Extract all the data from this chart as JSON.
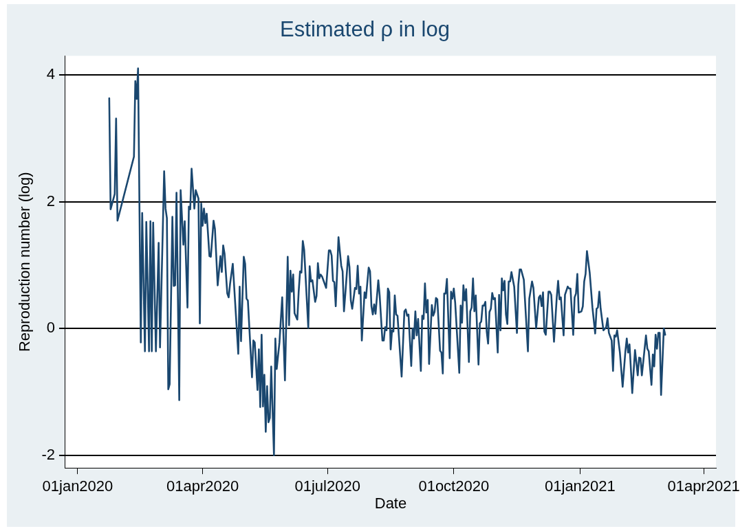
{
  "chart_data": {
    "type": "line",
    "title": "Estimated ρ in log",
    "xlabel": "Date",
    "ylabel": "Reproduction number (log)",
    "xlim": [
      "2019-12-23",
      "2021-04-10"
    ],
    "xticks": [
      {
        "value": "2020-01-01",
        "label": "01jan2020"
      },
      {
        "value": "2020-04-01",
        "label": "01apr2020"
      },
      {
        "value": "2020-07-01",
        "label": "01jul2020"
      },
      {
        "value": "2020-10-01",
        "label": "01oct2020"
      },
      {
        "value": "2021-01-01",
        "label": "01jan2021"
      },
      {
        "value": "2021-04-01",
        "label": "01apr2021"
      }
    ],
    "ylim": [
      -2.2,
      4.3
    ],
    "yticks": [
      -2,
      0,
      2,
      4
    ],
    "grid": "y",
    "legend": false,
    "marker": "none",
    "line_style": "solid",
    "series": [
      {
        "color": "#1a476f",
        "x": [
          "2020-01-24",
          "2020-01-25",
          "2020-01-28",
          "2020-01-29",
          "2020-01-30",
          "2020-02-11",
          "2020-02-12",
          "2020-02-13",
          "2020-02-14",
          "2020-02-16",
          "2020-02-17",
          "2020-02-19",
          "2020-02-20",
          "2020-02-22",
          "2020-02-23",
          "2020-02-24",
          "2020-02-25",
          "2020-02-27",
          "2020-02-29",
          "2020-03-01",
          "2020-03-04",
          "2020-03-05",
          "2020-03-06",
          "2020-03-07",
          "2020-03-08",
          "2020-03-10",
          "2020-03-11",
          "2020-03-12",
          "2020-03-13",
          "2020-03-15",
          "2020-03-16",
          "2020-03-18",
          "2020-03-19",
          "2020-03-21",
          "2020-03-22",
          "2020-03-23",
          "2020-03-24",
          "2020-03-26",
          "2020-03-27",
          "2020-03-29",
          "2020-03-30",
          "2020-03-31",
          "2020-04-01",
          "2020-04-02",
          "2020-04-03",
          "2020-04-04",
          "2020-04-06",
          "2020-04-07",
          "2020-04-09",
          "2020-04-10",
          "2020-04-12",
          "2020-04-14",
          "2020-04-15",
          "2020-04-16",
          "2020-04-17",
          "2020-04-19",
          "2020-04-20",
          "2020-04-21",
          "2020-04-23",
          "2020-04-27",
          "2020-04-28",
          "2020-04-29",
          "2020-05-01",
          "2020-05-02",
          "2020-05-03",
          "2020-05-04",
          "2020-05-07",
          "2020-05-08",
          "2020-05-09",
          "2020-05-11",
          "2020-05-12",
          "2020-05-13",
          "2020-05-14",
          "2020-05-15",
          "2020-05-16",
          "2020-05-17",
          "2020-05-18",
          "2020-05-19",
          "2020-05-20",
          "2020-05-21",
          "2020-05-23",
          "2020-05-24",
          "2020-05-25",
          "2020-05-27",
          "2020-05-29",
          "2020-05-31",
          "2020-06-02",
          "2020-06-03",
          "2020-06-04",
          "2020-06-05",
          "2020-06-06",
          "2020-06-07",
          "2020-06-09",
          "2020-06-10",
          "2020-06-11",
          "2020-06-12",
          "2020-06-13",
          "2020-06-14",
          "2020-06-17",
          "2020-06-18",
          "2020-06-19",
          "2020-06-20",
          "2020-06-22",
          "2020-06-23",
          "2020-06-24",
          "2020-06-25",
          "2020-06-26",
          "2020-06-27",
          "2020-06-30",
          "2020-07-02",
          "2020-07-03",
          "2020-07-04",
          "2020-07-05",
          "2020-07-06",
          "2020-07-07",
          "2020-07-09",
          "2020-07-11",
          "2020-07-12",
          "2020-07-13",
          "2020-07-14",
          "2020-07-16",
          "2020-07-17",
          "2020-07-18",
          "2020-07-19",
          "2020-07-21",
          "2020-07-22",
          "2020-07-23",
          "2020-07-24",
          "2020-07-25",
          "2020-07-26",
          "2020-07-28",
          "2020-07-29",
          "2020-07-31",
          "2020-08-01",
          "2020-08-02",
          "2020-08-03",
          "2020-08-04",
          "2020-08-05",
          "2020-08-07",
          "2020-08-08",
          "2020-08-10",
          "2020-08-11",
          "2020-08-12",
          "2020-08-13",
          "2020-08-14",
          "2020-08-15",
          "2020-08-16",
          "2020-08-17",
          "2020-08-18",
          "2020-08-19",
          "2020-08-20",
          "2020-08-21",
          "2020-08-24",
          "2020-08-26",
          "2020-08-27",
          "2020-08-28",
          "2020-08-29",
          "2020-08-31",
          "2020-09-01",
          "2020-09-02",
          "2020-09-03",
          "2020-09-04",
          "2020-09-05",
          "2020-09-07",
          "2020-09-08",
          "2020-09-09",
          "2020-09-10",
          "2020-09-11",
          "2020-09-12",
          "2020-09-13",
          "2020-09-15",
          "2020-09-16",
          "2020-09-17",
          "2020-09-18",
          "2020-09-19",
          "2020-09-21",
          "2020-09-22",
          "2020-09-23",
          "2020-09-24",
          "2020-09-25",
          "2020-09-26",
          "2020-09-28",
          "2020-09-29",
          "2020-09-30",
          "2020-10-01",
          "2020-10-02",
          "2020-10-05",
          "2020-10-06",
          "2020-10-07",
          "2020-10-08",
          "2020-10-09",
          "2020-10-10",
          "2020-10-12",
          "2020-10-13",
          "2020-10-14",
          "2020-10-15",
          "2020-10-16",
          "2020-10-17",
          "2020-10-19",
          "2020-10-20",
          "2020-10-21",
          "2020-10-22",
          "2020-10-23",
          "2020-10-24",
          "2020-10-25",
          "2020-10-26",
          "2020-10-27",
          "2020-10-28",
          "2020-10-29",
          "2020-10-30",
          "2020-10-31",
          "2020-11-02",
          "2020-11-03",
          "2020-11-04",
          "2020-11-05",
          "2020-11-06",
          "2020-11-07",
          "2020-11-08",
          "2020-11-09",
          "2020-11-10",
          "2020-11-11",
          "2020-11-12",
          "2020-11-14",
          "2020-11-16",
          "2020-11-17",
          "2020-11-18",
          "2020-11-19",
          "2020-11-21",
          "2020-11-24",
          "2020-11-25",
          "2020-11-27",
          "2020-11-28",
          "2020-11-30",
          "2020-12-02",
          "2020-12-03",
          "2020-12-04",
          "2020-12-05",
          "2020-12-06",
          "2020-12-07",
          "2020-12-09",
          "2020-12-10",
          "2020-12-11",
          "2020-12-13",
          "2020-12-15",
          "2020-12-16",
          "2020-12-17",
          "2020-12-18",
          "2020-12-20",
          "2020-12-21",
          "2020-12-23",
          "2020-12-24",
          "2020-12-25",
          "2020-12-27",
          "2020-12-28",
          "2020-12-29",
          "2020-12-30",
          "2020-12-31",
          "2021-01-02",
          "2021-01-03",
          "2021-01-04",
          "2021-01-05",
          "2021-01-06",
          "2021-01-08",
          "2021-01-10",
          "2021-01-12",
          "2021-01-13",
          "2021-01-14",
          "2021-01-15",
          "2021-01-16",
          "2021-01-18",
          "2021-01-20",
          "2021-01-21",
          "2021-01-22",
          "2021-01-24",
          "2021-01-25",
          "2021-01-26",
          "2021-01-27",
          "2021-01-28",
          "2021-01-30",
          "2021-02-01",
          "2021-02-03",
          "2021-02-04",
          "2021-02-05",
          "2021-02-06",
          "2021-02-08",
          "2021-02-10",
          "2021-02-12",
          "2021-02-13",
          "2021-02-14",
          "2021-02-15",
          "2021-02-18",
          "2021-02-19",
          "2021-02-20",
          "2021-02-22",
          "2021-02-23",
          "2021-02-24",
          "2021-02-25",
          "2021-02-26",
          "2021-02-27",
          "2021-02-28",
          "2021-03-01",
          "2021-03-03",
          "2021-03-04"
        ],
        "values": [
          3.63,
          1.88,
          2.12,
          3.31,
          1.7,
          2.71,
          3.9,
          3.62,
          4.1,
          -0.22,
          1.82,
          -0.36,
          1.68,
          -0.36,
          1.69,
          -0.36,
          1.67,
          -0.36,
          1.35,
          -0.3,
          2.48,
          1.89,
          1.74,
          -0.96,
          -0.88,
          1.76,
          0.67,
          0.68,
          2.14,
          -1.13,
          2.18,
          1.32,
          1.69,
          0.33,
          1.92,
          1.88,
          2.52,
          1.89,
          2.18,
          2.05,
          0.08,
          1.97,
          1.62,
          1.89,
          1.66,
          1.81,
          1.14,
          1.13,
          1.7,
          1.57,
          0.68,
          1.14,
          0.89,
          1.31,
          1.18,
          0.55,
          0.49,
          0.7,
          1.02,
          -0.4,
          0.66,
          -0.2,
          1.13,
          1.02,
          0.47,
          0.44,
          -0.77,
          -0.19,
          -0.22,
          -0.97,
          -0.33,
          -1.24,
          -0.1,
          -1.23,
          -0.73,
          -1.63,
          -0.91,
          -1.48,
          -1.41,
          -0.6,
          -2.0,
          -0.16,
          -0.64,
          -0.22,
          0.49,
          -0.82,
          1.13,
          0.05,
          0.91,
          0.58,
          0.85,
          0.24,
          0.14,
          0.58,
          0.9,
          0.88,
          1.38,
          1.24,
          0.01,
          0.98,
          0.74,
          0.76,
          0.42,
          0.51,
          1.03,
          0.79,
          0.85,
          0.82,
          0.64,
          1.23,
          1.23,
          1.15,
          0.75,
          0.73,
          0.35,
          1.44,
          0.99,
          0.9,
          0.27,
          0.55,
          1.14,
          0.97,
          0.44,
          0.31,
          0.64,
          0.62,
          0.99,
          0.55,
          0.66,
          -0.19,
          0.57,
          0.48,
          0.96,
          0.9,
          0.35,
          0.22,
          0.38,
          0.23,
          0.76,
          0.52,
          -0.19,
          -0.19,
          0.02,
          -0.03,
          0.63,
          0.57,
          -0.33,
          -0.03,
          -0.05,
          0.52,
          0.22,
          0.2,
          -0.76,
          0.27,
          0.3,
          0.2,
          0.22,
          -0.59,
          0.0,
          -0.16,
          0.27,
          -0.11,
          0.15,
          -0.67,
          0.2,
          0.15,
          0.71,
          0.25,
          0.45,
          -0.56,
          0.37,
          0.2,
          0.26,
          0.48,
          0.46,
          -0.35,
          -0.38,
          -0.71,
          0.55,
          0.55,
          0.78,
          -0.47,
          0.58,
          0.47,
          0.63,
          0.41,
          -0.7,
          0.36,
          0.09,
          0.68,
          0.44,
          0.62,
          -0.53,
          0.27,
          0.33,
          0.79,
          0.27,
          0.52,
          -0.57,
          0.08,
          0.11,
          0.36,
          0.36,
          0.42,
          -0.05,
          -0.24,
          0.26,
          0.31,
          0.56,
          0.46,
          0.48,
          -0.38,
          0.53,
          -0.03,
          0.79,
          0.6,
          0.75,
          0.22,
          0.07,
          0.74,
          0.74,
          0.89,
          0.66,
          -0.07,
          0.69,
          0.93,
          0.93,
          0.77,
          -0.36,
          0.47,
          0.74,
          0.64,
          0.0,
          0.49,
          0.52,
          0.35,
          0.57,
          -0.05,
          -0.1,
          0.58,
          0.58,
          0.53,
          -0.21,
          0.49,
          0.75,
          0.46,
          0.49,
          -0.11,
          0.53,
          0.66,
          0.63,
          0.63,
          -0.1,
          0.49,
          0.55,
          0.86,
          0.25,
          0.27,
          0.35,
          0.74,
          0.86,
          1.22,
          0.88,
          0.33,
          -0.08,
          0.31,
          0.33,
          0.58,
          0.31,
          -0.03,
          0.02,
          0.16,
          -0.07,
          -0.19,
          -0.67,
          -0.11,
          -0.13,
          -0.03,
          -0.38,
          -0.92,
          -0.36,
          -0.16,
          -0.38,
          -0.25,
          -1.02,
          -0.34,
          -0.74,
          -0.46,
          -0.47,
          -0.74,
          -0.11,
          -0.32,
          -0.36,
          -0.89,
          -0.41,
          -0.6,
          -0.1,
          -0.32,
          -0.07,
          -0.07,
          -1.05,
          0.0,
          -0.1
        ]
      }
    ]
  }
}
